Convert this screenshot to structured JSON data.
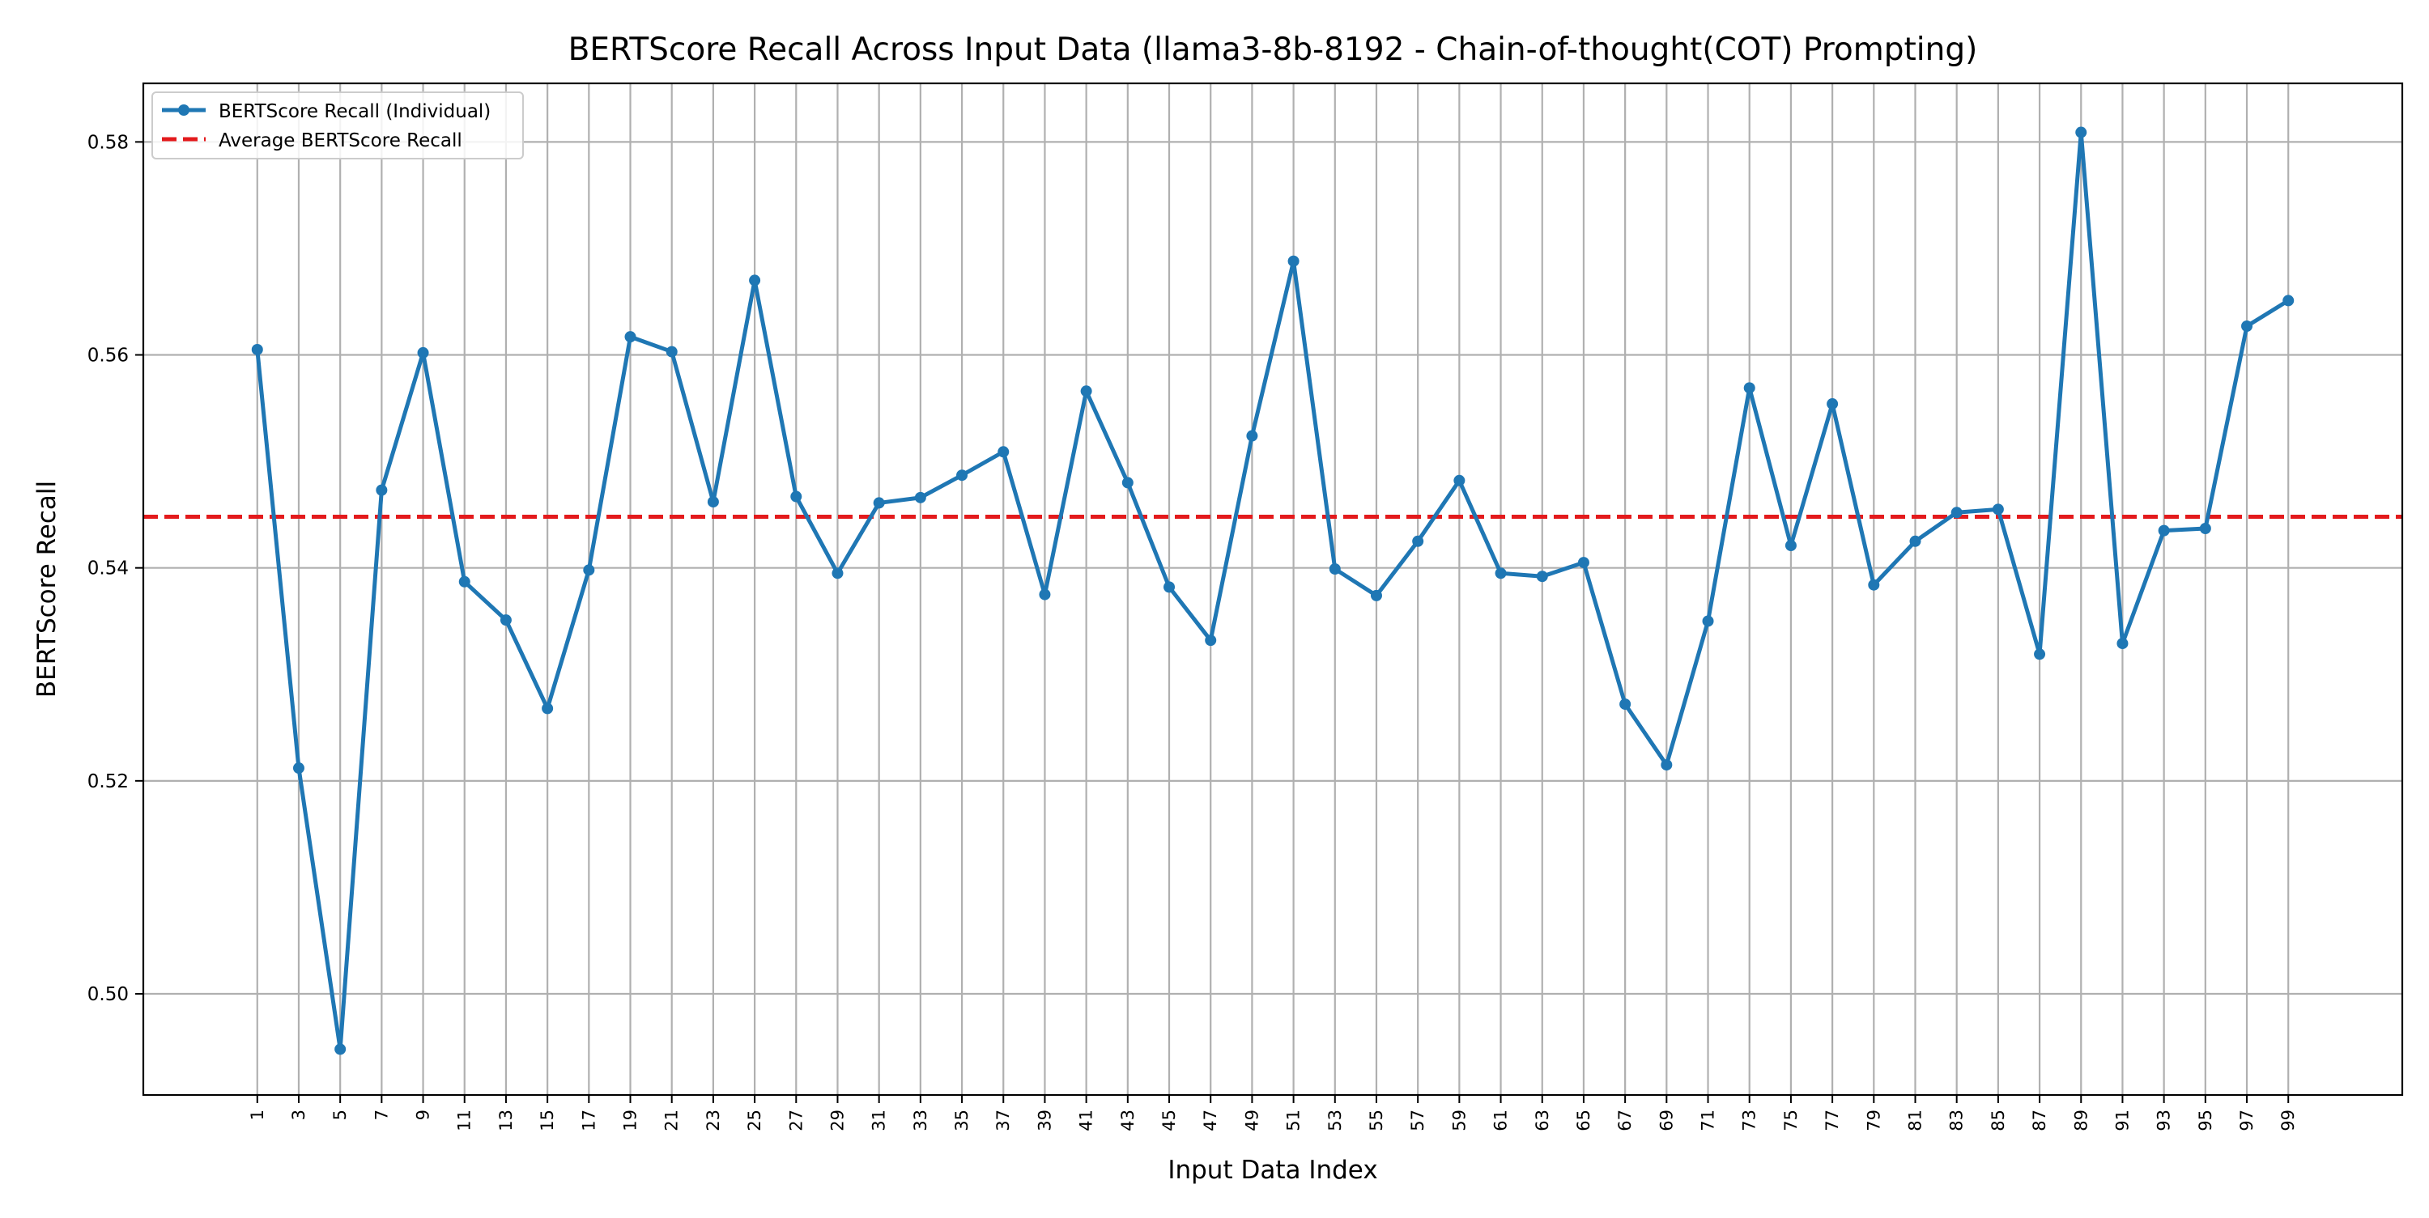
{
  "chart_data": {
    "type": "line",
    "title": "BERTScore Recall Across Input Data (llama3-8b-8192 - Chain-of-thought(COT) Prompting)",
    "xlabel": "Input Data Index",
    "ylabel": "BERTScore Recall",
    "x": [
      1,
      3,
      5,
      7,
      9,
      11,
      13,
      15,
      17,
      19,
      21,
      23,
      25,
      27,
      29,
      31,
      33,
      35,
      37,
      39,
      41,
      43,
      45,
      47,
      49,
      51,
      53,
      55,
      57,
      59,
      61,
      63,
      65,
      67,
      69,
      71,
      73,
      75,
      77,
      79,
      81,
      83,
      85,
      87,
      89,
      91,
      93,
      95,
      97,
      99
    ],
    "x_tick_labels": [
      "1",
      "3",
      "5",
      "7",
      "9",
      "11",
      "13",
      "15",
      "17",
      "19",
      "21",
      "23",
      "25",
      "27",
      "29",
      "31",
      "33",
      "35",
      "37",
      "39",
      "41",
      "43",
      "45",
      "47",
      "49",
      "51",
      "53",
      "55",
      "57",
      "59",
      "61",
      "63",
      "65",
      "67",
      "69",
      "71",
      "73",
      "75",
      "77",
      "79",
      "81",
      "83",
      "85",
      "87",
      "89",
      "91",
      "93",
      "95",
      "97",
      "99"
    ],
    "xlim": [
      -4.5,
      104.5
    ],
    "ylim": [
      0.4905,
      0.5855
    ],
    "y_ticks": [
      0.5,
      0.52,
      0.54,
      0.56,
      0.58
    ],
    "y_tick_labels": [
      "0.50",
      "0.52",
      "0.54",
      "0.56",
      "0.58"
    ],
    "grid": true,
    "legend_position": "top-left",
    "series": [
      {
        "name": "BERTScore Recall (Individual)",
        "style": "solid-line-with-markers",
        "color": "#1f77b4",
        "values": [
          0.5605,
          0.5212,
          0.4948,
          0.5473,
          0.5602,
          0.5387,
          0.5351,
          0.5268,
          0.5398,
          0.5617,
          0.5603,
          0.5462,
          0.567,
          0.5467,
          0.5395,
          0.5461,
          0.5466,
          0.5487,
          0.5509,
          0.5375,
          0.5566,
          0.548,
          0.5382,
          0.5332,
          0.5524,
          0.5688,
          0.5399,
          0.5374,
          0.5425,
          0.5482,
          0.5395,
          0.5392,
          0.5405,
          0.5272,
          0.5215,
          0.535,
          0.5569,
          0.5421,
          0.5554,
          0.5384,
          0.5425,
          0.5452,
          0.5455,
          0.5319,
          0.5809,
          0.5329,
          0.5435,
          0.5437,
          0.5627,
          0.5651
        ]
      },
      {
        "name": "Average BERTScore Recall",
        "style": "dashed-line",
        "color": "#e31a1c",
        "value": 0.5448
      }
    ]
  }
}
